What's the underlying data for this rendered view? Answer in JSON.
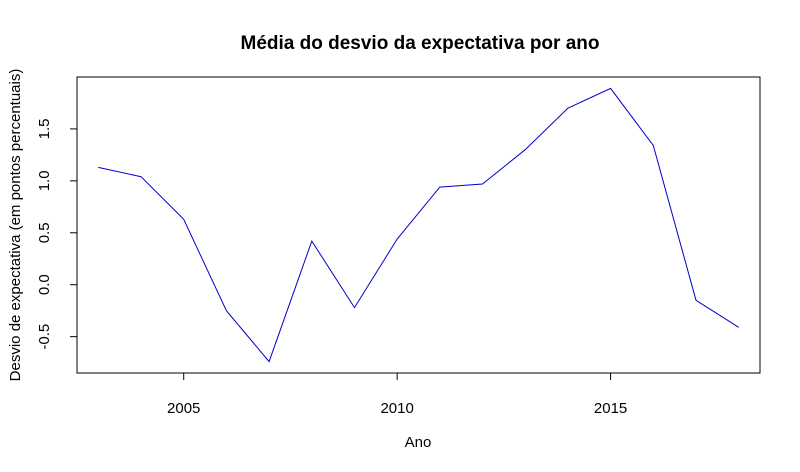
{
  "chart_data": {
    "type": "line",
    "title": "Média do desvio da expectativa por ano",
    "xlabel": "Ano",
    "ylabel": "Desvio de expectativa (em pontos percentuais)",
    "xlim": [
      2002.5,
      2018.5
    ],
    "ylim": [
      -0.85,
      2.0
    ],
    "x_ticks": [
      "2005",
      "2010",
      "2015"
    ],
    "y_ticks": [
      "-0.5",
      "0.0",
      "0.5",
      "1.0",
      "1.5"
    ],
    "grid": false,
    "line_color": "#0000cc",
    "x": [
      2003,
      2004,
      2005,
      2006,
      2007,
      2008,
      2009,
      2010,
      2011,
      2012,
      2013,
      2014,
      2015,
      2016,
      2017,
      2018
    ],
    "values": [
      1.13,
      1.04,
      0.63,
      -0.25,
      -0.74,
      0.42,
      -0.22,
      0.44,
      0.94,
      0.97,
      1.3,
      1.7,
      1.89,
      1.34,
      -0.15,
      -0.41
    ]
  }
}
